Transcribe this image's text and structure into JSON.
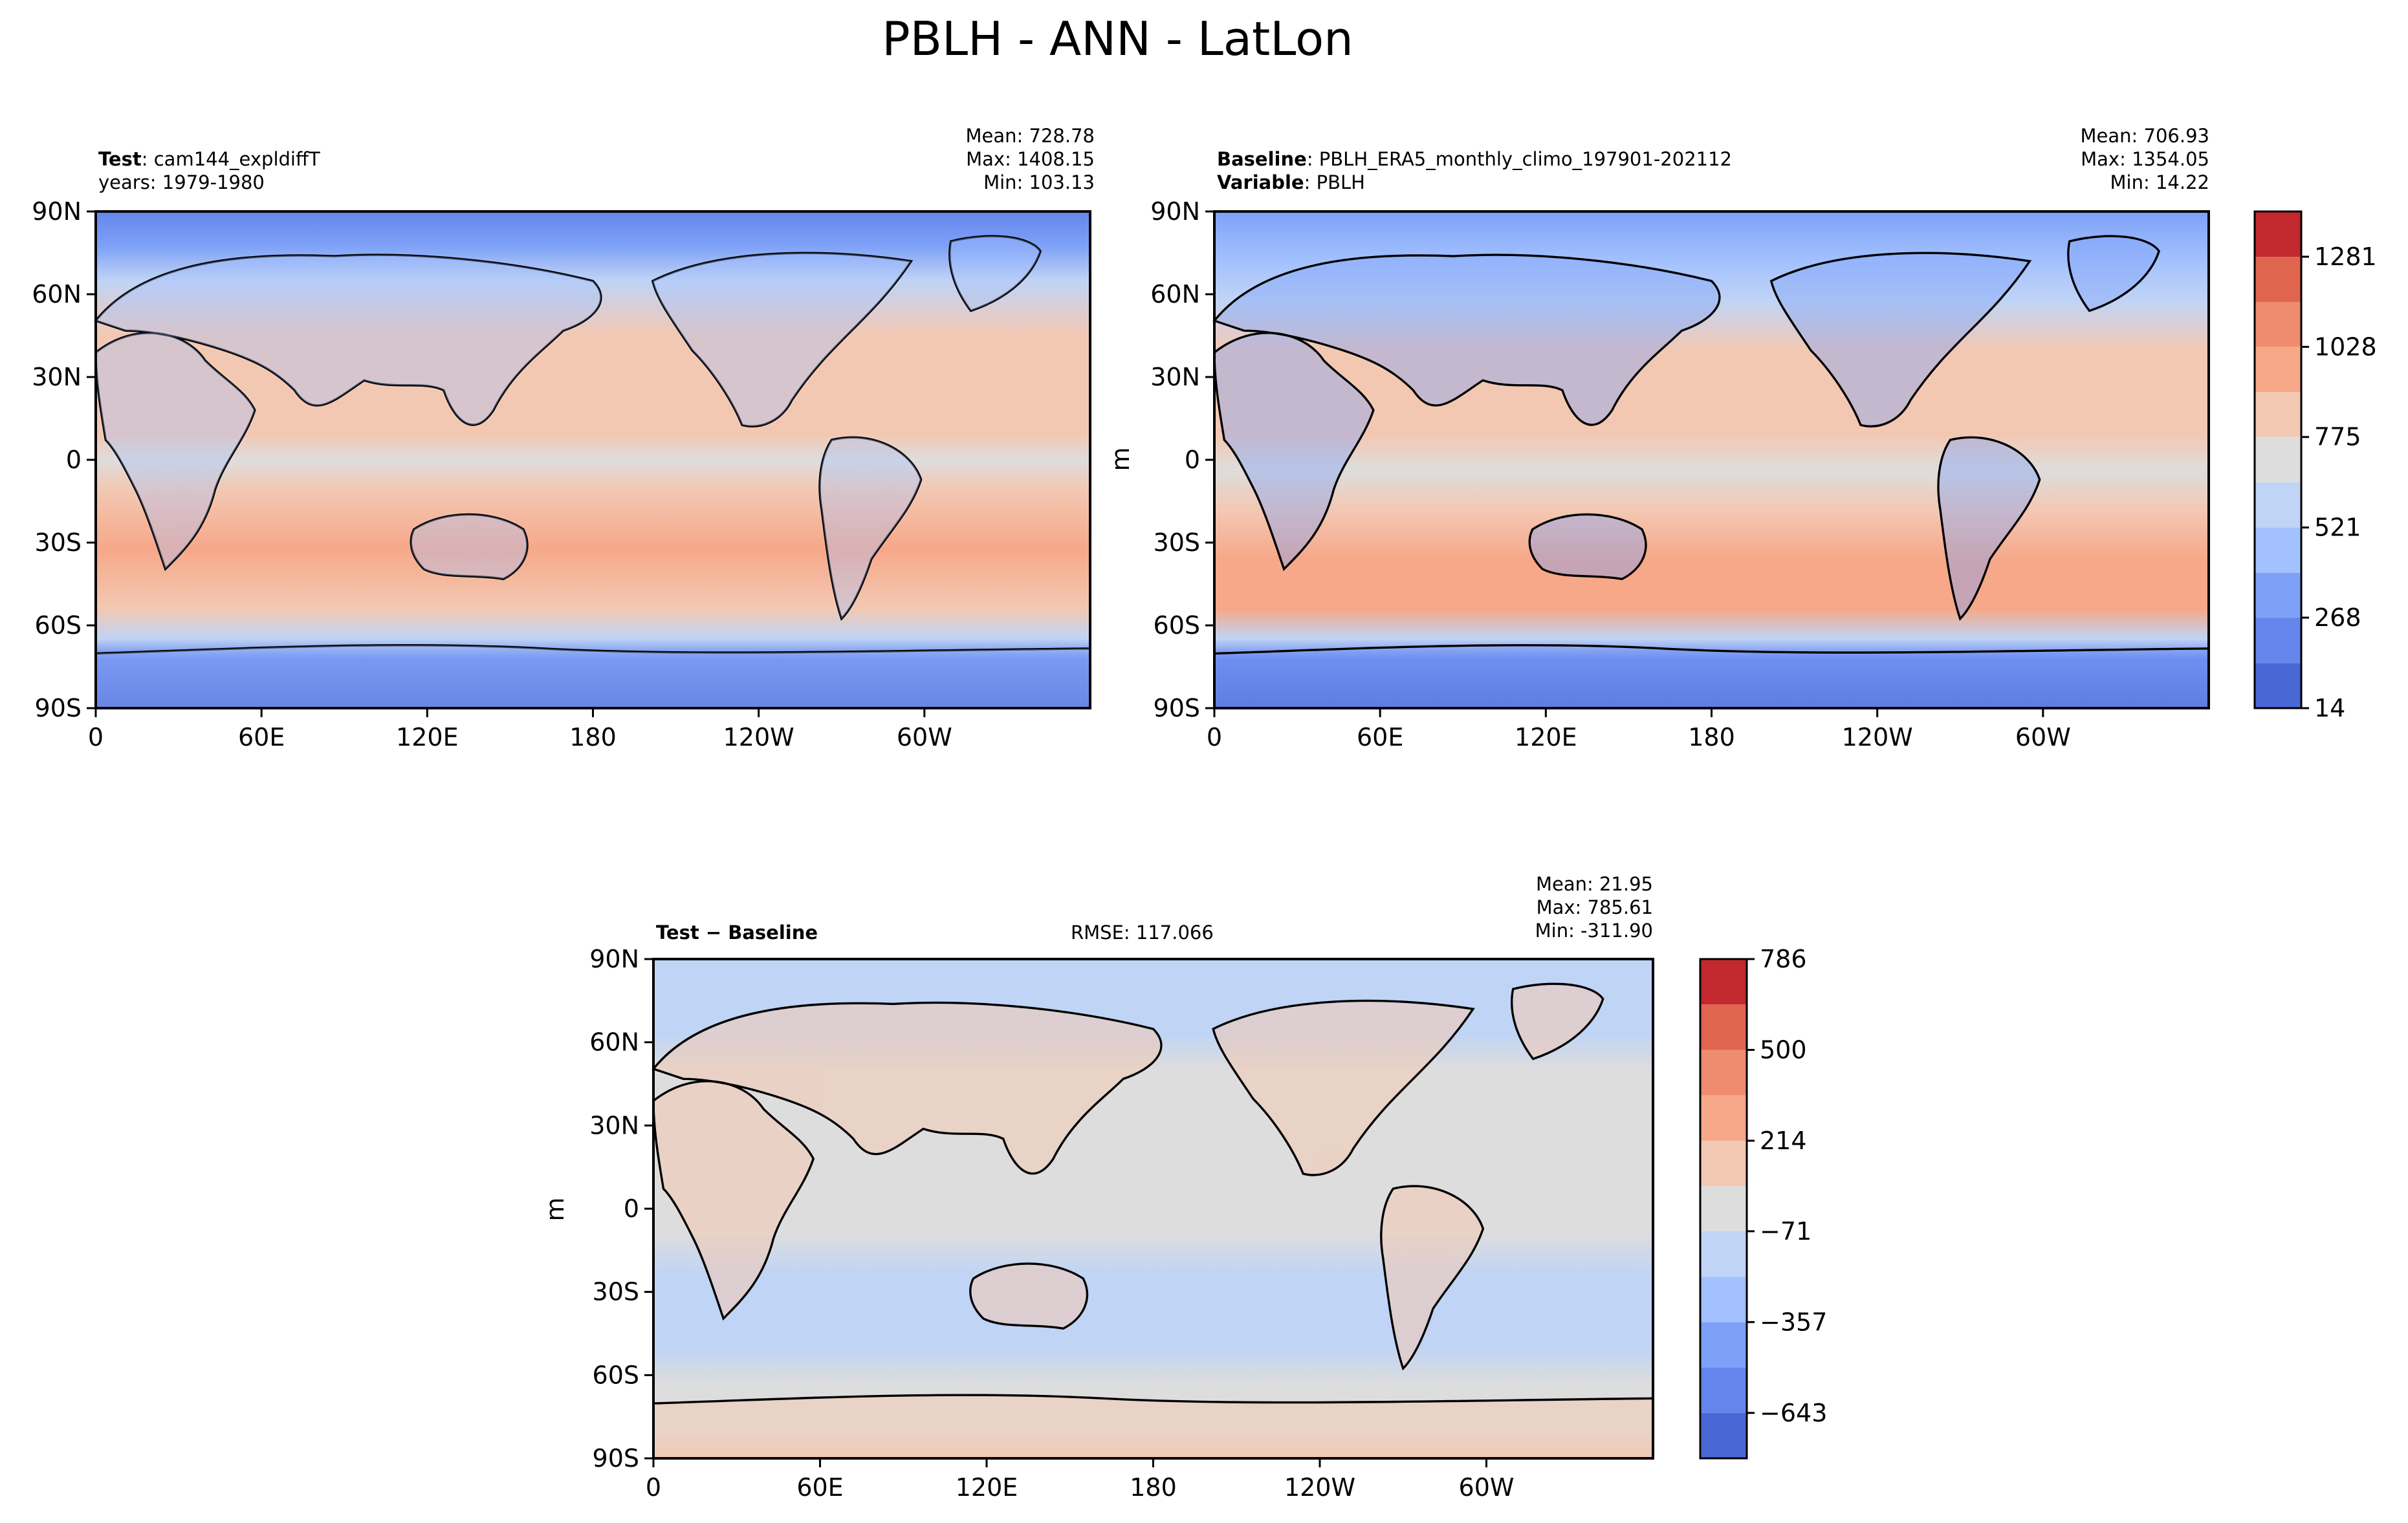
{
  "figure": {
    "title": "PBLH - ANN - LatLon"
  },
  "panels": [
    {
      "id": "test",
      "line1_bold": "Test",
      "line1_text": ": cam144_expldiffT",
      "line2_bold": "",
      "line2_text": "years: 1979-1980",
      "stats": {
        "mean": "Mean: 728.78",
        "max": "Max: 1408.15",
        "min": "Min: 103.13"
      }
    },
    {
      "id": "baseline",
      "line1_bold": "Baseline",
      "line1_text": ": PBLH_ERA5_monthly_climo_197901-202112",
      "line2_bold": "Variable",
      "line2_text": ": PBLH",
      "stats": {
        "mean": "Mean: 706.93",
        "max": "Max: 1354.05",
        "min": "Min: 14.22"
      },
      "ylabel": "m"
    },
    {
      "id": "diff",
      "line1_bold": "Test − Baseline",
      "line1_text": "",
      "rmse": "RMSE: 117.066",
      "stats": {
        "mean": "Mean: 21.95",
        "max": "Max: 785.61",
        "min": "Min: -311.90"
      },
      "ylabel": "m"
    }
  ],
  "chart_data": [
    {
      "type": "heatmap",
      "name": "Test",
      "projection": "latlon",
      "x_ticks": [
        "0",
        "60E",
        "120E",
        "180",
        "120W",
        "60W"
      ],
      "y_ticks": [
        "90N",
        "60N",
        "30N",
        "0",
        "30S",
        "60S",
        "90S"
      ],
      "xlim": [
        0,
        360
      ],
      "ylim": [
        -90,
        90
      ],
      "colormap": "coolwarm",
      "mean": 728.78,
      "max": 1408.15,
      "min": 103.13
    },
    {
      "type": "heatmap",
      "name": "Baseline",
      "projection": "latlon",
      "x_ticks": [
        "0",
        "60E",
        "120E",
        "180",
        "120W",
        "60W"
      ],
      "y_ticks": [
        "90N",
        "60N",
        "30N",
        "0",
        "30S",
        "60S",
        "90S"
      ],
      "xlim": [
        0,
        360
      ],
      "ylim": [
        -90,
        90
      ],
      "ylabel": "m",
      "colormap": "coolwarm",
      "mean": 706.93,
      "max": 1354.05,
      "min": 14.22,
      "colorbar": {
        "levels": [
          14,
          140,
          268,
          394,
          521,
          648,
          775,
          901,
          1028,
          1154,
          1281,
          1408
        ],
        "tick_labels": [
          "14",
          "268",
          "521",
          "775",
          "1028",
          "1281"
        ],
        "colors": [
          "#4a67d6",
          "#6485ec",
          "#7ea1f8",
          "#a3c1fe",
          "#c0d4f5",
          "#dddddd",
          "#f3c8b3",
          "#f6a889",
          "#ef8c6f",
          "#e0654f",
          "#c3282f"
        ]
      }
    },
    {
      "type": "heatmap",
      "name": "Test − Baseline",
      "projection": "latlon",
      "x_ticks": [
        "0",
        "60E",
        "120E",
        "180",
        "120W",
        "60W"
      ],
      "y_ticks": [
        "90N",
        "60N",
        "30N",
        "0",
        "30S",
        "60S",
        "90S"
      ],
      "xlim": [
        0,
        360
      ],
      "ylim": [
        -90,
        90
      ],
      "ylabel": "m",
      "colormap": "coolwarm",
      "mean": 21.95,
      "max": 785.61,
      "min": -311.9,
      "rmse": 117.066,
      "colorbar": {
        "levels": [
          -786,
          -643,
          -500,
          -357,
          -214,
          -71,
          71,
          214,
          357,
          500,
          643,
          786
        ],
        "tick_labels": [
          "786",
          "500",
          "214",
          "−71",
          "−357",
          "−643"
        ],
        "tick_values": [
          786,
          500,
          214,
          -71,
          -357,
          -643
        ],
        "colors": [
          "#4a67d6",
          "#6485ec",
          "#7ea1f8",
          "#a3c1fe",
          "#c0d4f5",
          "#dddddd",
          "#f3c8b3",
          "#f6a889",
          "#ef8c6f",
          "#e0654f",
          "#c3282f"
        ]
      }
    }
  ]
}
